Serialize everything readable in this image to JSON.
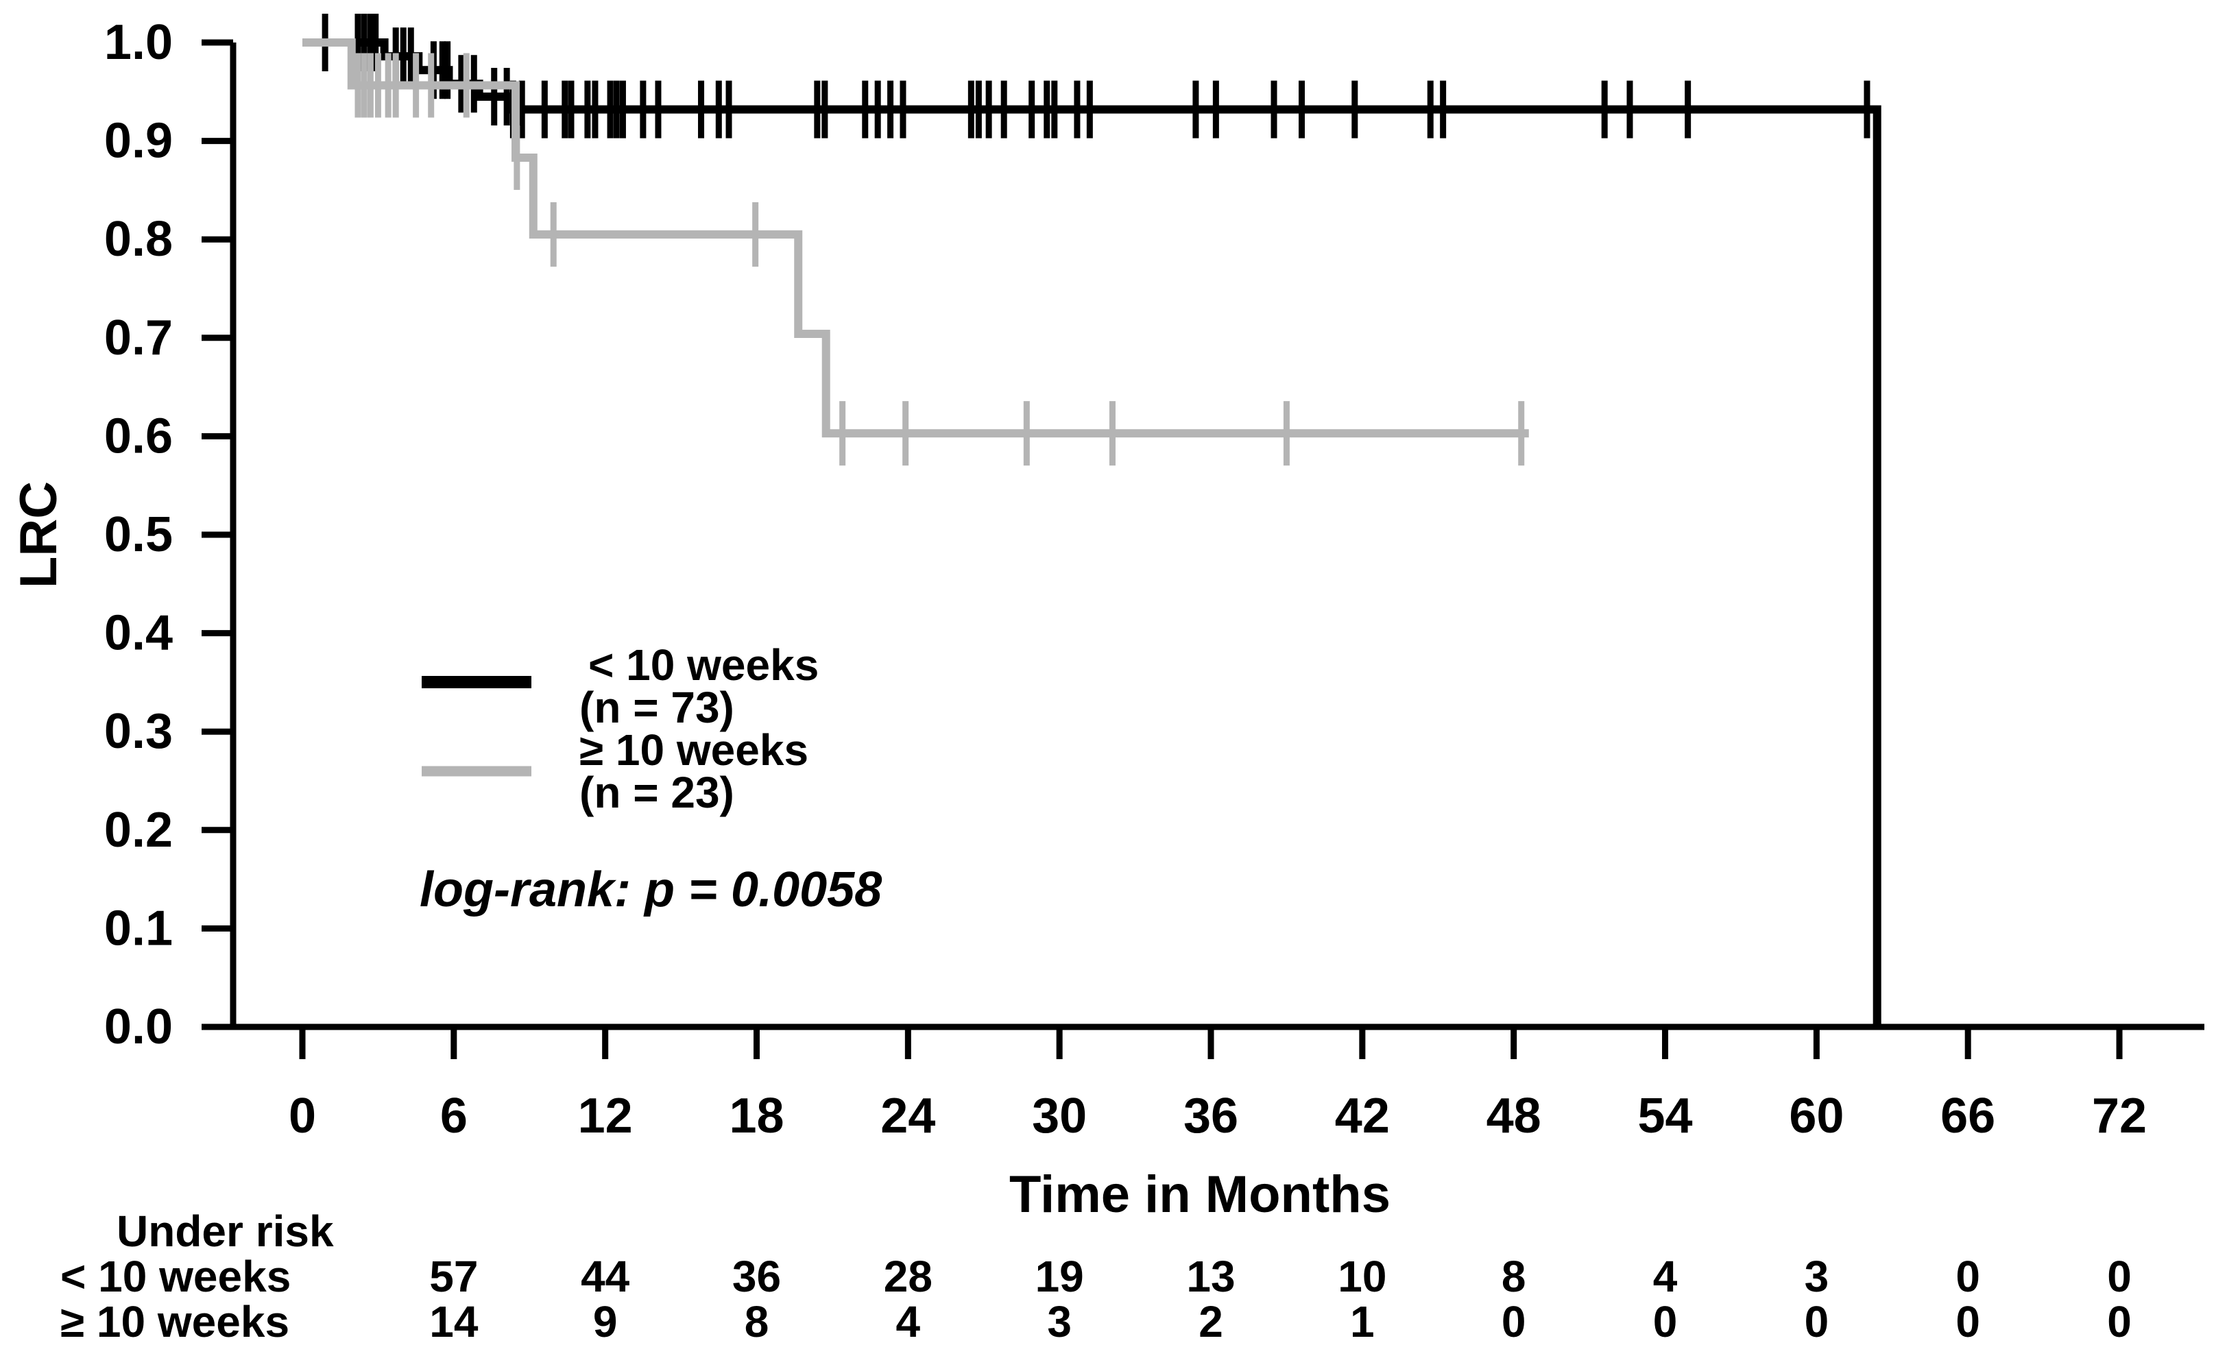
{
  "chart_data": {
    "type": "line",
    "curve_style": "step-after-kaplan-meier",
    "title": "",
    "xlabel": "Time in Months",
    "ylabel": "LRC",
    "xlim": [
      0,
      72
    ],
    "ylim": [
      0.0,
      1.0
    ],
    "xticks": [
      0,
      6,
      12,
      18,
      24,
      30,
      36,
      42,
      48,
      54,
      60,
      66,
      72
    ],
    "yticks": [
      1.0,
      0.9,
      0.8,
      0.7,
      0.6,
      0.5,
      0.4,
      0.3,
      0.2,
      0.1,
      0.0
    ],
    "grid": false,
    "annotation": "log-rank: p = 0.0058",
    "legend_position": "center-left",
    "series": [
      {
        "name": "< 10 weeks",
        "n_label": "(n = 73)",
        "color": "#000000",
        "step_points": [
          [
            0,
            1.0
          ],
          [
            3.25,
            0.986
          ],
          [
            4.6,
            0.972
          ],
          [
            5.8,
            0.958
          ],
          [
            7.0,
            0.945
          ],
          [
            8.2,
            0.932
          ],
          [
            62.4,
            0.0
          ]
        ],
        "end_time": 62.4,
        "censors": [
          [
            0.9,
            1.0
          ],
          [
            2.2,
            1.0
          ],
          [
            2.45,
            1.0
          ],
          [
            2.7,
            1.0
          ],
          [
            2.9,
            1.0
          ],
          [
            3.7,
            0.986
          ],
          [
            4.0,
            0.986
          ],
          [
            4.3,
            0.986
          ],
          [
            5.2,
            0.972
          ],
          [
            5.55,
            0.972
          ],
          [
            5.75,
            0.972
          ],
          [
            6.3,
            0.958
          ],
          [
            6.8,
            0.958
          ],
          [
            7.6,
            0.945
          ],
          [
            8.1,
            0.945
          ],
          [
            8.35,
            0.932
          ],
          [
            8.7,
            0.932
          ],
          [
            9.6,
            0.932
          ],
          [
            10.4,
            0.932
          ],
          [
            10.65,
            0.932
          ],
          [
            11.3,
            0.932
          ],
          [
            11.6,
            0.932
          ],
          [
            12.2,
            0.932
          ],
          [
            12.45,
            0.932
          ],
          [
            12.7,
            0.932
          ],
          [
            13.5,
            0.932
          ],
          [
            14.1,
            0.932
          ],
          [
            15.8,
            0.932
          ],
          [
            16.5,
            0.932
          ],
          [
            16.9,
            0.932
          ],
          [
            20.4,
            0.932
          ],
          [
            20.7,
            0.932
          ],
          [
            22.3,
            0.932
          ],
          [
            22.8,
            0.932
          ],
          [
            23.3,
            0.932
          ],
          [
            23.8,
            0.932
          ],
          [
            26.5,
            0.932
          ],
          [
            26.8,
            0.932
          ],
          [
            27.2,
            0.932
          ],
          [
            27.8,
            0.932
          ],
          [
            28.9,
            0.932
          ],
          [
            29.5,
            0.932
          ],
          [
            29.8,
            0.932
          ],
          [
            30.7,
            0.932
          ],
          [
            31.2,
            0.932
          ],
          [
            35.4,
            0.932
          ],
          [
            36.2,
            0.932
          ],
          [
            38.5,
            0.932
          ],
          [
            39.6,
            0.932
          ],
          [
            41.7,
            0.932
          ],
          [
            44.7,
            0.932
          ],
          [
            45.2,
            0.932
          ],
          [
            51.6,
            0.932
          ],
          [
            52.6,
            0.932
          ],
          [
            54.9,
            0.932
          ],
          [
            62.0,
            0.932
          ]
        ]
      },
      {
        "name": "≥ 10 weeks",
        "n_label": "(n = 23)",
        "color": "#b4b4b4",
        "step_points": [
          [
            0,
            1.0
          ],
          [
            1.95,
            0.9565
          ],
          [
            8.45,
            0.883
          ],
          [
            9.15,
            0.805
          ],
          [
            19.65,
            0.704
          ],
          [
            20.75,
            0.603
          ]
        ],
        "end_time": 48.6,
        "censors": [
          [
            2.2,
            0.9565
          ],
          [
            2.45,
            0.9565
          ],
          [
            2.7,
            0.9565
          ],
          [
            3.0,
            0.9565
          ],
          [
            3.4,
            0.9565
          ],
          [
            3.7,
            0.9565
          ],
          [
            4.5,
            0.9565
          ],
          [
            5.1,
            0.9565
          ],
          [
            6.5,
            0.9565
          ],
          [
            8.5,
            0.883
          ],
          [
            9.95,
            0.805
          ],
          [
            17.95,
            0.805
          ],
          [
            21.4,
            0.603
          ],
          [
            23.9,
            0.603
          ],
          [
            28.7,
            0.603
          ],
          [
            32.1,
            0.603
          ],
          [
            39.0,
            0.603
          ],
          [
            48.3,
            0.603
          ]
        ]
      }
    ],
    "risk_table": {
      "title": "Under risk",
      "times": [
        6,
        12,
        18,
        24,
        30,
        36,
        42,
        48,
        54,
        60,
        66,
        72
      ],
      "rows": [
        {
          "label": "< 10 weeks",
          "values": [
            57,
            44,
            36,
            28,
            19,
            13,
            10,
            8,
            4,
            3,
            0,
            0
          ]
        },
        {
          "label": "≥ 10 weeks",
          "values": [
            14,
            9,
            8,
            4,
            3,
            2,
            1,
            0,
            0,
            0,
            0,
            0
          ]
        }
      ]
    }
  }
}
